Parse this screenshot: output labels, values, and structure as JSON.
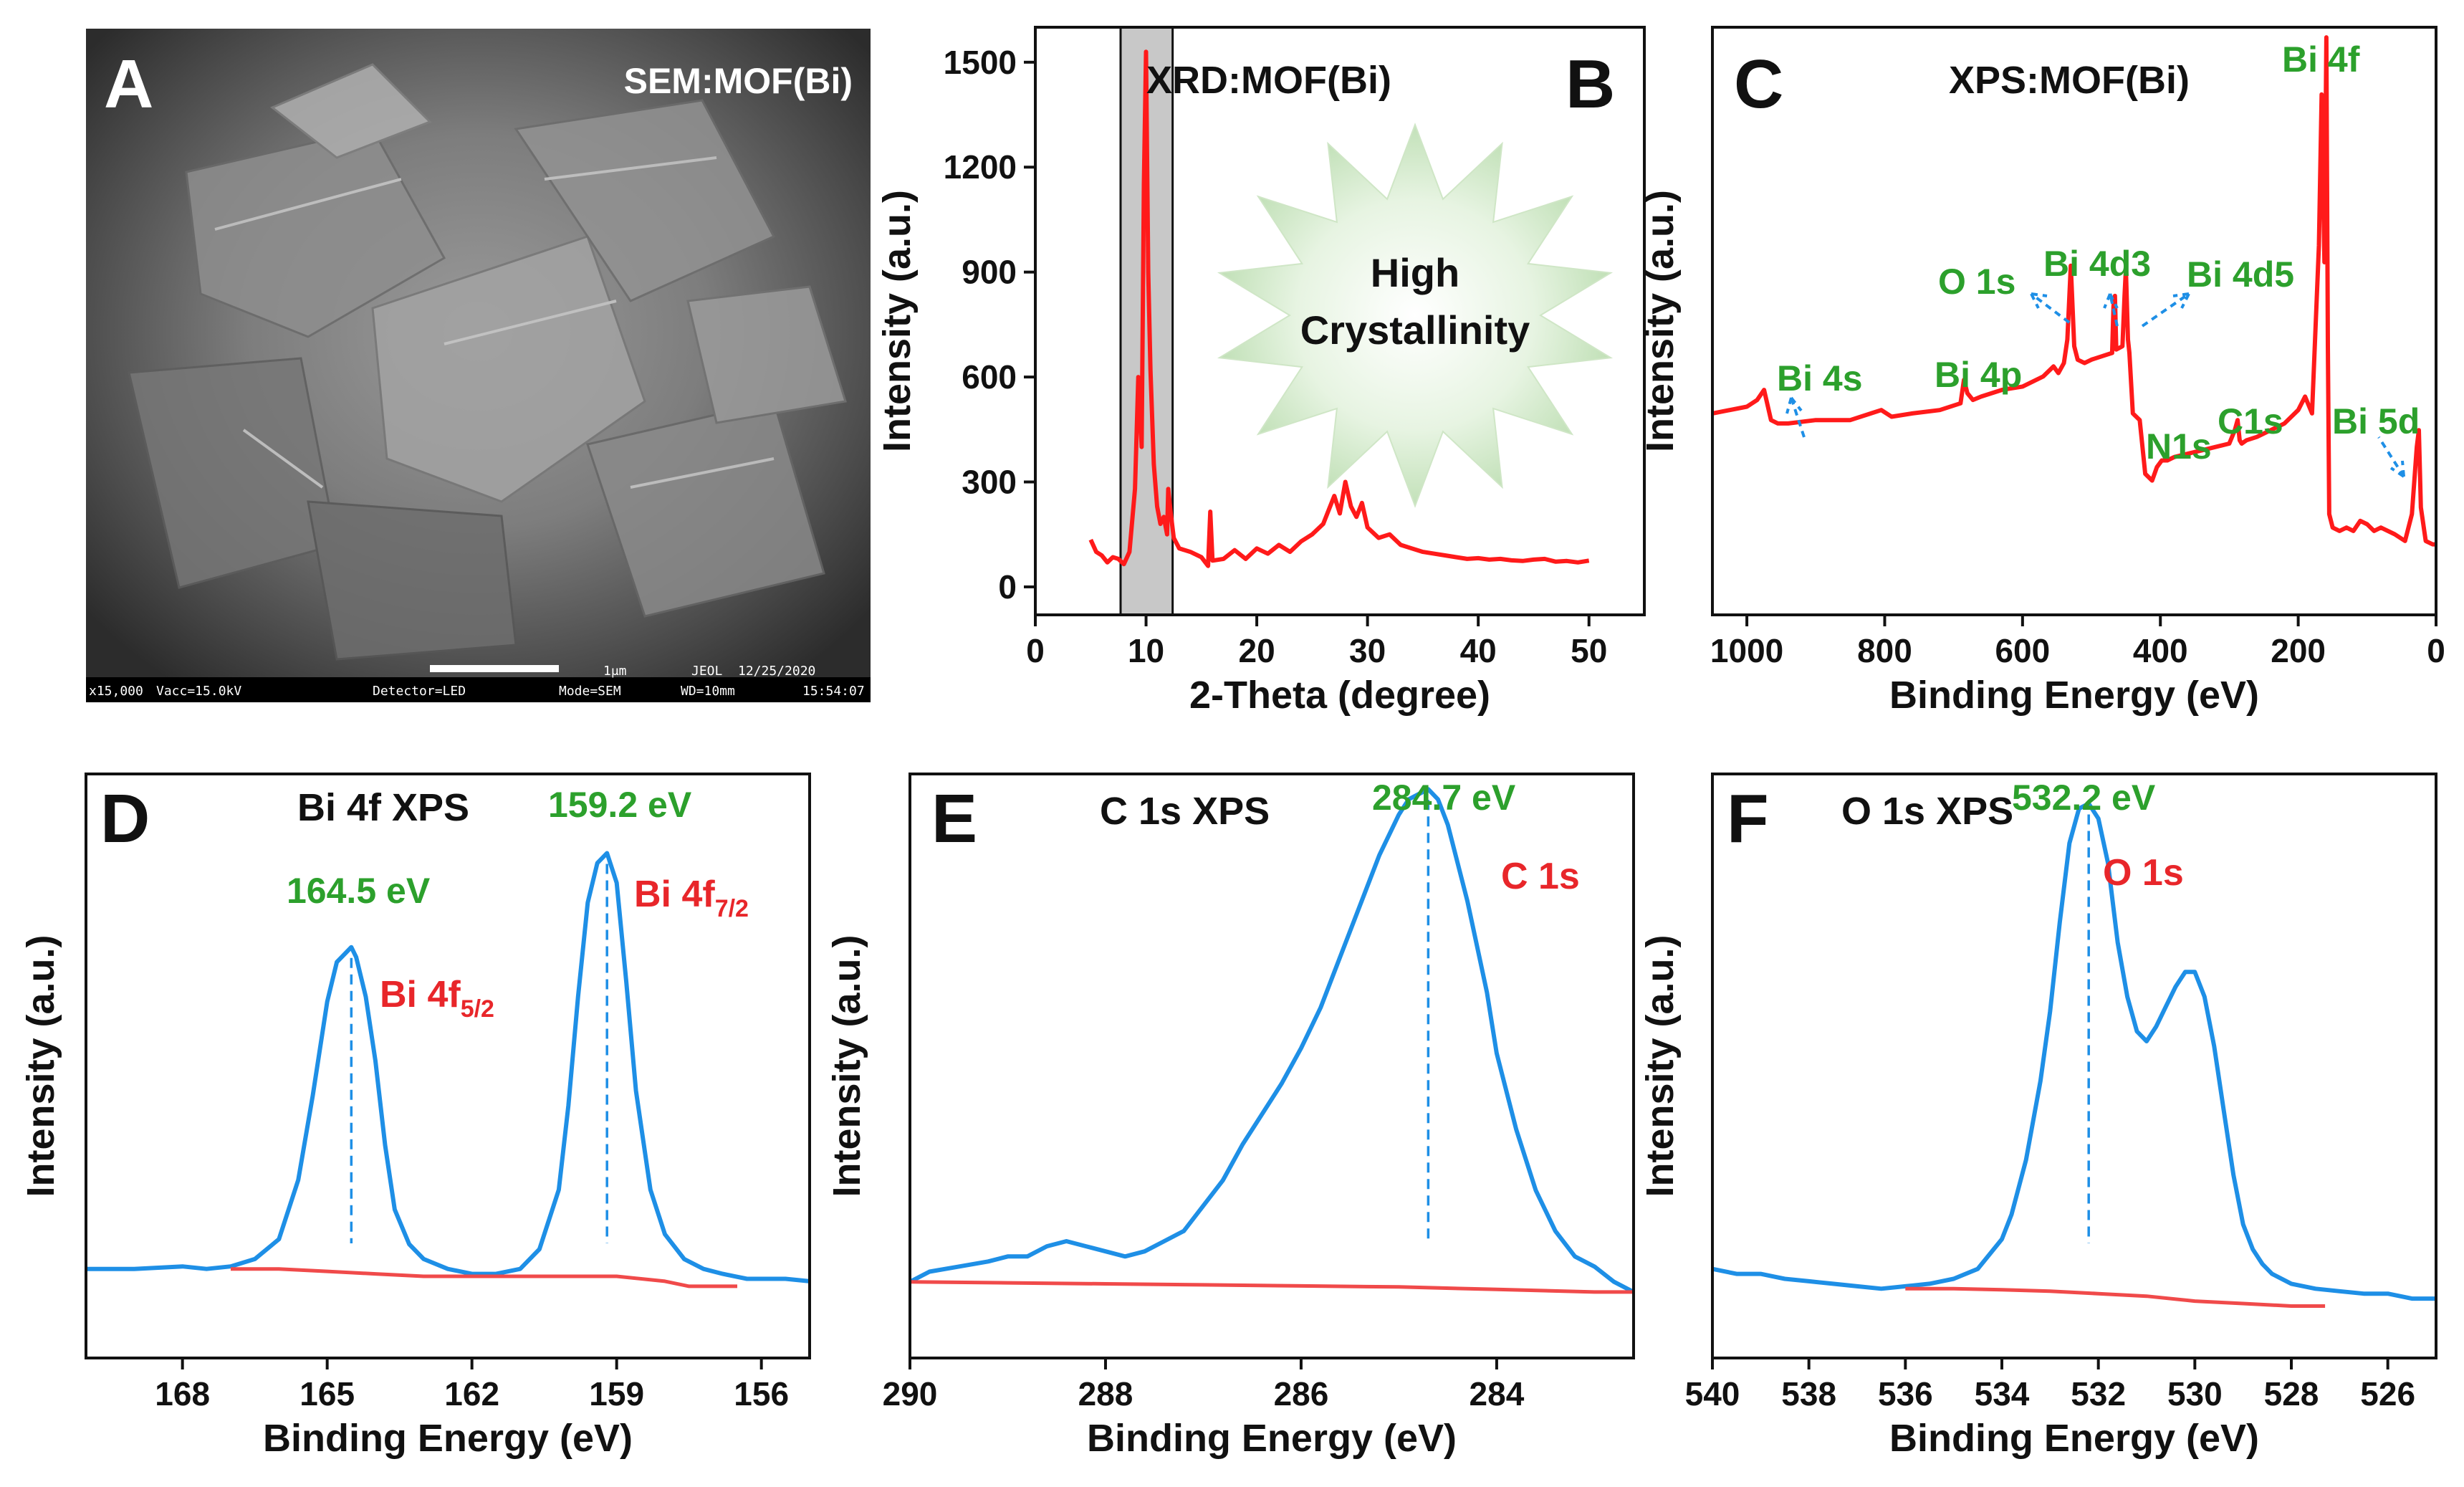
{
  "colors": {
    "xrd": "#ff1a1a",
    "survey": "#ff1a1a",
    "blue": "#1e8fe6",
    "baseline": "#f04a4a",
    "green": "#2ca02c",
    "highlight": "#c8c8c8"
  },
  "panelA": {
    "letter": "A",
    "title": "SEM:MOF(Bi)",
    "scale_label": "1μm",
    "footer_mag": "x15,000",
    "footer_vacc": "Vacc=15.0kV",
    "footer_detector": "Detector=LED",
    "footer_mode": "Mode=SEM",
    "footer_wd": "WD=10mm",
    "footer_brand": "JEOL",
    "footer_date": "12/25/2020",
    "footer_time": "15:54:07"
  },
  "panelB": {
    "letter": "B",
    "burst_line1": "High",
    "burst_line2": "Crystallinity"
  },
  "panelC": {
    "letter": "C",
    "peak_labels": {
      "bi4s": "Bi 4s",
      "bi4p": "Bi 4p",
      "o1s": "O 1s",
      "bi4d3": "Bi 4d3",
      "bi4d5": "Bi 4d5",
      "n1s": "N1s",
      "c1s": "C1s",
      "bi5d": "Bi 5d",
      "bi4f": "Bi 4f"
    }
  },
  "panelD": {
    "letter": "D",
    "peak1": "164.5 eV",
    "peak2": "159.2 eV",
    "label1_main": "Bi 4f",
    "label1_sub": "5/2",
    "label2_main": "Bi 4f",
    "label2_sub": "7/2"
  },
  "panelE": {
    "letter": "E",
    "peak": "284.7 eV",
    "label": "C 1s"
  },
  "panelF": {
    "letter": "F",
    "peak": "532.2 eV",
    "label": "O 1s"
  },
  "chart_data": [
    {
      "id": "B",
      "type": "line",
      "title": "XRD:MOF(Bi)",
      "xlabel": "2-Theta (degree)",
      "ylabel": "Intensity (a.u.)",
      "xlim": [
        0,
        55
      ],
      "ylim": [
        -80,
        1600
      ],
      "xticks": [
        0,
        10,
        20,
        30,
        40,
        50
      ],
      "yticks": [
        0,
        300,
        600,
        900,
        1200,
        1500
      ],
      "highlight_range": [
        7.7,
        12.4
      ],
      "series": [
        {
          "x": [
            5,
            5.5,
            6,
            6.5,
            7,
            7.5,
            8,
            8.5,
            9,
            9.3,
            9.6,
            9.8,
            10,
            10.2,
            10.4,
            10.7,
            11,
            11.3,
            11.6,
            11.9,
            12,
            12.2,
            12.5,
            13,
            14,
            15,
            15.6,
            15.8,
            16,
            17,
            18,
            19,
            20,
            21,
            22,
            23,
            24,
            25,
            26,
            26.5,
            27,
            27.5,
            28,
            28.5,
            29,
            29.5,
            30,
            31,
            32,
            33,
            34,
            35,
            36,
            37,
            38,
            39,
            40,
            41,
            42,
            43,
            44,
            45,
            46,
            47,
            48,
            49,
            50
          ],
          "y": [
            135,
            100,
            90,
            70,
            85,
            80,
            65,
            100,
            280,
            600,
            400,
            1150,
            1530,
            900,
            620,
            350,
            230,
            180,
            200,
            150,
            280,
            220,
            140,
            110,
            100,
            85,
            60,
            215,
            75,
            80,
            105,
            80,
            110,
            95,
            120,
            100,
            130,
            150,
            180,
            220,
            260,
            210,
            300,
            230,
            200,
            240,
            170,
            140,
            150,
            120,
            110,
            100,
            95,
            90,
            85,
            80,
            82,
            78,
            80,
            76,
            74,
            78,
            80,
            72,
            74,
            70,
            75
          ]
        }
      ]
    },
    {
      "id": "C",
      "type": "line",
      "title": "XPS:MOF(Bi)",
      "xlabel": "Binding Energy (eV)",
      "ylabel": "Intensity (a.u.)",
      "xlim": [
        1050,
        0
      ],
      "ylim": [
        -0.2,
        1.55
      ],
      "xticks": [
        1000,
        800,
        600,
        400,
        200,
        0
      ],
      "series": [
        {
          "x": [
            1050,
            1000,
            985,
            975,
            965,
            955,
            940,
            900,
            850,
            820,
            805,
            790,
            760,
            720,
            690,
            685,
            680,
            672,
            660,
            630,
            600,
            570,
            555,
            548,
            540,
            535,
            530,
            525,
            520,
            510,
            500,
            485,
            470,
            468,
            466,
            464,
            455,
            452,
            450,
            447,
            445,
            440,
            430,
            422,
            412,
            405,
            398,
            390,
            380,
            360,
            340,
            320,
            300,
            292,
            288,
            285,
            282,
            275,
            260,
            240,
            220,
            200,
            190,
            180,
            170,
            166,
            162,
            159.2,
            157,
            155,
            150,
            140,
            130,
            120,
            110,
            100,
            90,
            80,
            60,
            45,
            35,
            28,
            25,
            22,
            15,
            5,
            0
          ],
          "y": [
            0.4,
            0.42,
            0.44,
            0.47,
            0.38,
            0.37,
            0.37,
            0.38,
            0.38,
            0.4,
            0.41,
            0.39,
            0.4,
            0.41,
            0.43,
            0.5,
            0.46,
            0.44,
            0.45,
            0.47,
            0.48,
            0.51,
            0.54,
            0.52,
            0.55,
            0.62,
            0.84,
            0.6,
            0.56,
            0.55,
            0.56,
            0.57,
            0.58,
            0.72,
            0.75,
            0.59,
            0.6,
            0.75,
            0.83,
            0.62,
            0.58,
            0.4,
            0.38,
            0.22,
            0.2,
            0.24,
            0.26,
            0.26,
            0.27,
            0.28,
            0.29,
            0.3,
            0.31,
            0.35,
            0.38,
            0.32,
            0.31,
            0.32,
            0.33,
            0.35,
            0.37,
            0.41,
            0.45,
            0.4,
            0.9,
            1.35,
            0.85,
            1.52,
            0.6,
            0.1,
            0.06,
            0.05,
            0.06,
            0.05,
            0.08,
            0.07,
            0.05,
            0.06,
            0.04,
            0.02,
            0.1,
            0.3,
            0.35,
            0.12,
            0.02,
            0.01,
            0.01
          ]
        }
      ]
    },
    {
      "id": "D",
      "type": "line",
      "title": "Bi 4f XPS",
      "xlabel": "Binding Energy (eV)",
      "ylabel": "Intensity (a.u.)",
      "xlim": [
        170,
        155
      ],
      "ylim": [
        -0.18,
        1.0
      ],
      "xticks": [
        168,
        165,
        162,
        159,
        156
      ],
      "peak_markers": [
        164.5,
        159.2
      ],
      "series": [
        {
          "name": "",
          "x": [
            170,
            169,
            168,
            167.5,
            167,
            166.5,
            166,
            165.6,
            165.3,
            165,
            164.8,
            164.6,
            164.5,
            164.4,
            164.2,
            164,
            163.8,
            163.6,
            163.3,
            163,
            162.5,
            162,
            161.5,
            161,
            160.6,
            160.2,
            160,
            159.8,
            159.6,
            159.4,
            159.2,
            159,
            158.8,
            158.6,
            158.3,
            158,
            157.6,
            157.2,
            156.8,
            156.3,
            156,
            155.5,
            155
          ],
          "y": [
            0.0,
            0.0,
            0.005,
            0.0,
            0.005,
            0.02,
            0.06,
            0.18,
            0.35,
            0.54,
            0.62,
            0.64,
            0.65,
            0.63,
            0.55,
            0.42,
            0.25,
            0.12,
            0.05,
            0.02,
            0.0,
            -0.01,
            -0.01,
            0.0,
            0.04,
            0.16,
            0.33,
            0.55,
            0.74,
            0.82,
            0.84,
            0.78,
            0.58,
            0.36,
            0.16,
            0.07,
            0.02,
            0.0,
            -0.01,
            -0.02,
            -0.02,
            -0.02,
            -0.025
          ]
        },
        {
          "name": "",
          "x": [
            167,
            166,
            165,
            164,
            163,
            162,
            161,
            160,
            159,
            158,
            157.5,
            157,
            156.5
          ],
          "y": [
            0.0,
            0.0,
            -0.005,
            -0.01,
            -0.015,
            -0.015,
            -0.015,
            -0.015,
            -0.015,
            -0.025,
            -0.035,
            -0.035,
            -0.035
          ]
        }
      ]
    },
    {
      "id": "E",
      "type": "line",
      "title": "C 1s XPS",
      "xlabel": "Binding Energy (eV)",
      "ylabel": "Intensity (a.u.)",
      "xlim": [
        290,
        282.6
      ],
      "ylim": [
        -0.15,
        1.0
      ],
      "xticks": [
        290,
        288,
        286,
        284
      ],
      "peak_markers": [
        284.7
      ],
      "series": [
        {
          "name": "",
          "x": [
            290,
            289.8,
            289.5,
            289.2,
            289,
            288.8,
            288.6,
            288.4,
            288.2,
            288,
            287.8,
            287.6,
            287.4,
            287.2,
            287,
            286.8,
            286.6,
            286.4,
            286.2,
            286,
            285.8,
            285.6,
            285.4,
            285.2,
            285,
            284.9,
            284.8,
            284.7,
            284.6,
            284.5,
            284.3,
            284.1,
            284,
            283.8,
            283.6,
            283.4,
            283.2,
            283,
            282.8,
            282.6
          ],
          "y": [
            0.0,
            0.02,
            0.03,
            0.04,
            0.05,
            0.05,
            0.07,
            0.08,
            0.07,
            0.06,
            0.05,
            0.06,
            0.08,
            0.1,
            0.15,
            0.2,
            0.27,
            0.33,
            0.39,
            0.46,
            0.54,
            0.64,
            0.74,
            0.84,
            0.92,
            0.95,
            0.96,
            0.97,
            0.95,
            0.9,
            0.75,
            0.57,
            0.45,
            0.3,
            0.18,
            0.1,
            0.05,
            0.03,
            0.0,
            -0.02
          ]
        },
        {
          "name": "",
          "x": [
            290,
            289,
            288,
            287,
            286,
            285,
            284,
            283,
            282.6
          ],
          "y": [
            0.0,
            -0.002,
            -0.004,
            -0.006,
            -0.008,
            -0.01,
            -0.015,
            -0.02,
            -0.02
          ]
        }
      ]
    },
    {
      "id": "F",
      "type": "line",
      "title": "O 1s XPS",
      "xlabel": "Binding Energy (eV)",
      "ylabel": "Intensity (a.u.)",
      "xlim": [
        540,
        525
      ],
      "ylim": [
        -0.18,
        1.0
      ],
      "xticks": [
        540,
        538,
        536,
        534,
        532,
        530,
        528,
        526
      ],
      "peak_markers": [
        532.2
      ],
      "series": [
        {
          "name": "",
          "x": [
            540,
            539.5,
            539,
            538.5,
            538,
            537.5,
            537,
            536.5,
            536,
            535.5,
            535,
            534.5,
            534,
            533.8,
            533.5,
            533.2,
            533,
            532.8,
            532.6,
            532.4,
            532.2,
            532,
            531.8,
            531.6,
            531.4,
            531.2,
            531,
            530.8,
            530.6,
            530.4,
            530.2,
            530,
            529.8,
            529.6,
            529.4,
            529.2,
            529,
            528.8,
            528.6,
            528.4,
            528,
            527.5,
            527,
            526.5,
            526,
            525.5,
            525
          ],
          "y": [
            0.0,
            -0.01,
            -0.01,
            -0.02,
            -0.025,
            -0.03,
            -0.035,
            -0.04,
            -0.035,
            -0.03,
            -0.02,
            0.0,
            0.06,
            0.11,
            0.22,
            0.38,
            0.52,
            0.7,
            0.86,
            0.93,
            0.94,
            0.91,
            0.82,
            0.66,
            0.55,
            0.48,
            0.46,
            0.49,
            0.53,
            0.57,
            0.6,
            0.6,
            0.55,
            0.45,
            0.32,
            0.19,
            0.09,
            0.04,
            0.01,
            -0.01,
            -0.03,
            -0.04,
            -0.045,
            -0.05,
            -0.05,
            -0.06,
            -0.06
          ]
        },
        {
          "name": "",
          "x": [
            536,
            535,
            534,
            533,
            532,
            531,
            530,
            529,
            528,
            527.3
          ],
          "y": [
            -0.04,
            -0.04,
            -0.042,
            -0.045,
            -0.05,
            -0.055,
            -0.065,
            -0.07,
            -0.075,
            -0.075
          ]
        }
      ]
    }
  ]
}
